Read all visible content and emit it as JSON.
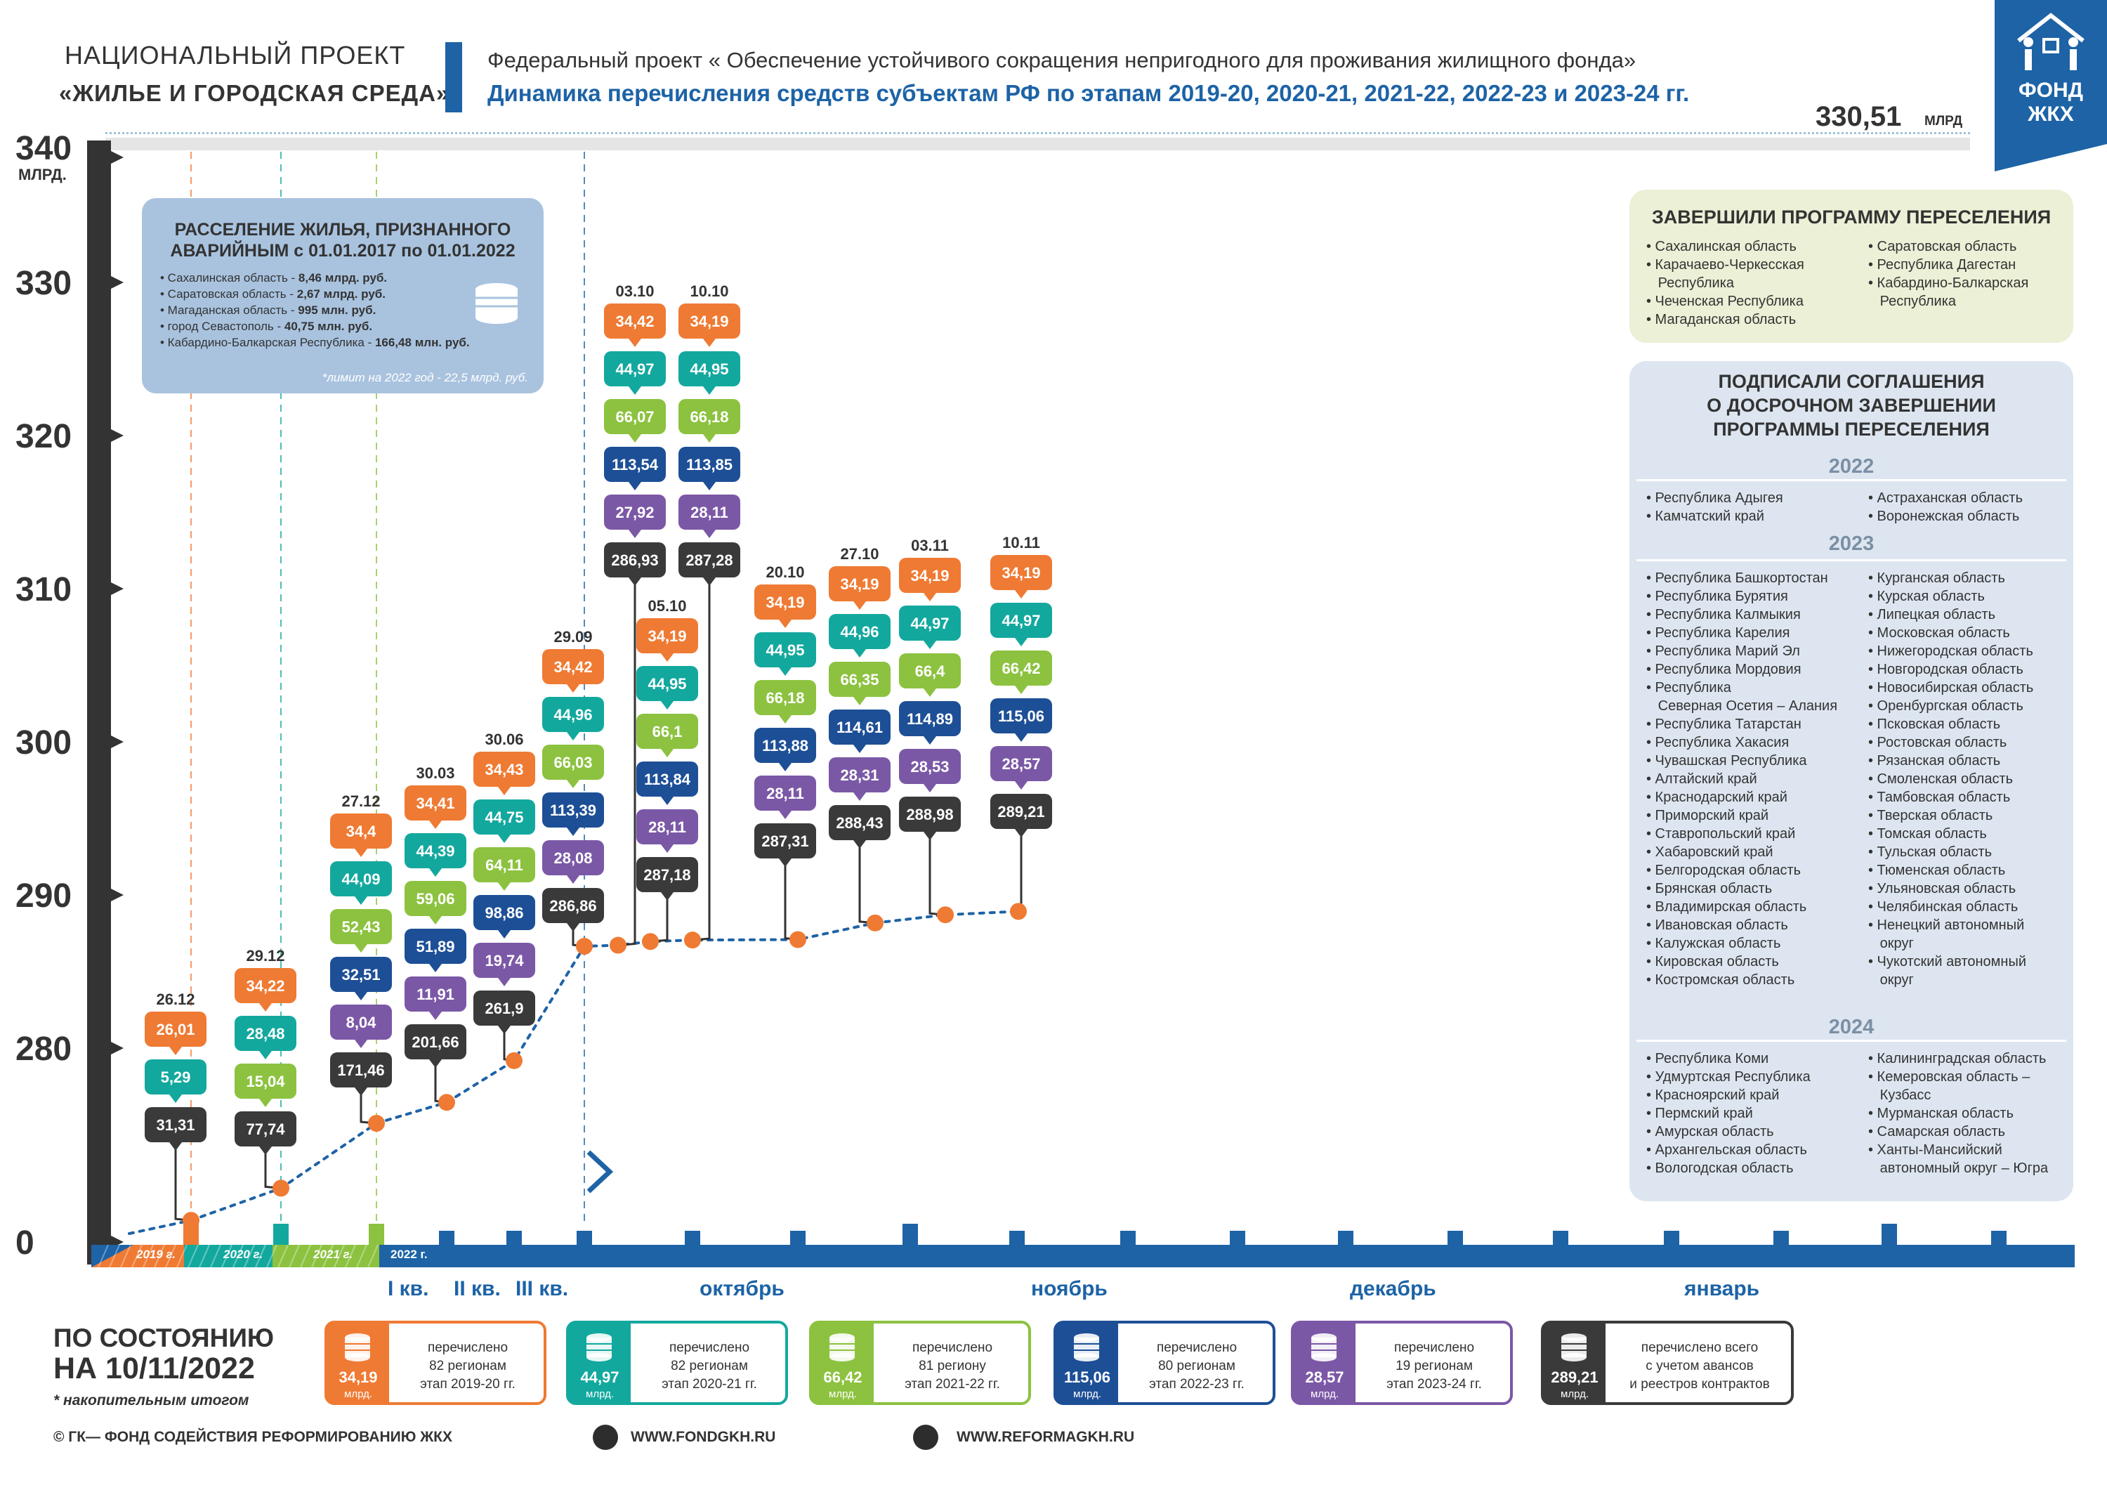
{
  "header": {
    "national_line1": "НАЦИОНАЛЬНЫЙ ПРОЕКТ",
    "national_line2": "«ЖИЛЬЕ И ГОРОДСКАЯ СРЕДА»",
    "federal": "Федеральный проект « Обеспечение устойчивого сокращения непригодного для проживания жилищного фонда»",
    "dynamics": "Динамика перечисления средств субъектам РФ по этапам 2019-20, 2020-21, 2021-22, 2022-23 и 2023-24 гг.",
    "logo_line1": "ФОНД",
    "logo_line2": "ЖКХ",
    "total_value": "330,51",
    "total_unit": "МЛРД"
  },
  "colors": {
    "orange": "#ef7a33",
    "teal": "#13a89e",
    "lime": "#8cc23f",
    "blue": "#1d4f96",
    "purple": "#7b58a6",
    "dark": "#3a3a3a",
    "brand": "#1d63a6"
  },
  "info_box": {
    "title_line1": "РАССЕЛЕНИЕ ЖИЛЬЯ, ПРИЗНАННОГО",
    "title_line2": "АВАРИЙНЫМ с 01.01.2017 по 01.01.2022",
    "items": [
      {
        "name": "• Сахалинская область - ",
        "value": "8,46 млрд. руб."
      },
      {
        "name": "• Саратовская область - ",
        "value": "2,67 млрд. руб."
      },
      {
        "name": "• Магаданская область - ",
        "value": "995 млн. руб."
      },
      {
        "name": "• город Севастополь - ",
        "value": "40,75 млн. руб."
      },
      {
        "name": "• Кабардино-Балкарская Республика - ",
        "value": "166,48 млн. руб."
      }
    ],
    "note": "*лимит на 2022 год - 22,5 млрд. руб."
  },
  "completed": {
    "title": "ЗАВЕРШИЛИ ПРОГРАММУ ПЕРЕСЕЛЕНИЯ",
    "left": [
      "• Сахалинская область",
      "• Карачаево-Черкесская",
      "   Республика",
      "• Чеченская Республика",
      "• Магаданская область"
    ],
    "right": [
      "• Саратовская область",
      "• Республика Дагестан",
      "• Кабардино-Балкарская",
      "   Республика"
    ]
  },
  "agreements": {
    "title_line1": "ПОДПИСАЛИ СОГЛАШЕНИЯ",
    "title_line2": "О ДОСРОЧНОМ ЗАВЕРШЕНИИ",
    "title_line3": "ПРОГРАММЫ ПЕРЕСЕЛЕНИЯ",
    "y2022": "2022",
    "y2022_left": [
      "• Республика Адыгея",
      "• Камчатский край"
    ],
    "y2022_right": [
      "• Астраханская область",
      "• Воронежская область"
    ],
    "y2023": "2023",
    "y2023_left": [
      "• Республика Башкортостан",
      "• Республика Бурятия",
      "• Республика Калмыкия",
      "• Республика Карелия",
      "• Республика Марий Эл",
      "• Республика Мордовия",
      "• Республика",
      "   Северная Осетия – Алания",
      "• Республика Татарстан",
      "• Республика Хакасия",
      "• Чувашская Республика",
      "• Алтайский край",
      "• Краснодарский край",
      "• Приморский край",
      "• Ставропольский край",
      "• Хабаровский край",
      "• Белгородская область",
      "• Брянская область",
      "• Владимирская область",
      "• Ивановская область",
      "• Калужская область",
      "• Кировская область",
      "• Костромская область"
    ],
    "y2023_right": [
      "• Курганская область",
      "• Курская область",
      "• Липецкая область",
      "• Московская область",
      "• Нижегородская область",
      "• Новгородская область",
      "• Новосибирская область",
      "• Оренбургская область",
      "• Псковская область",
      "• Ростовская область",
      "• Рязанская область",
      "• Смоленская область",
      "• Тамбовская область",
      "• Тверская область",
      "• Томская область",
      "• Тульская область",
      "• Тюменская область",
      "• Ульяновская область",
      "• Челябинская область",
      "• Ненецкий автономный",
      "   округ",
      "• Чукотский автономный",
      "   округ"
    ],
    "y2024": "2024",
    "y2024_left": [
      "• Республика Коми",
      "• Удмуртская Республика",
      "• Красноярский край",
      "• Пермский край",
      "• Амурская область",
      "• Архангельская область",
      "• Вологодская область"
    ],
    "y2024_right": [
      "• Калининградская область",
      "• Кемеровская область –",
      "   Кузбасс",
      "• Мурманская область",
      "• Самарская область",
      "• Ханты-Мансийский",
      "   автономный округ – Югра"
    ]
  },
  "status": {
    "line1": "ПО СОСТОЯНИЮ",
    "line2": "НА  10/11/2022",
    "note": "* накопительным итогом",
    "copyright": "©  ГК—  ФОНД СОДЕЙСТВИЯ РЕФОРМИРОВАНИЮ ЖКХ",
    "web1": "WWW.FONDGKH.RU",
    "web2": "WWW.REFORMAGKH.RU"
  },
  "legend": [
    {
      "value": "34,19",
      "unit": "млрд.",
      "l1": "перечислено",
      "l2": "82 регионам",
      "l3": "этап 2019-20 гг."
    },
    {
      "value": "44,97",
      "unit": "млрд.",
      "l1": "перечислено",
      "l2": "82 регионам",
      "l3": "этап 2020-21 гг."
    },
    {
      "value": "66,42",
      "unit": "млрд.",
      "l1": "перечислено",
      "l2": "81 региону",
      "l3": "этап 2021-22 гг."
    },
    {
      "value": "115,06",
      "unit": "млрд.",
      "l1": "перечислено",
      "l2": "80 регионам",
      "l3": "этап 2022-23 гг."
    },
    {
      "value": "28,57",
      "unit": "млрд.",
      "l1": "перечислено",
      "l2": "19 регионам",
      "l3": "этап 2023-24 гг."
    },
    {
      "value": "289,21",
      "unit": "млрд.",
      "l1": "перечислено всего",
      "l2": "с учетом авансов",
      "l3": "и реестров контрактов"
    }
  ],
  "chart_data": {
    "type": "bar",
    "title": "Динамика перечисления средств субъектам РФ по этапам 2019-20, 2020-21, 2021-22, 2022-23 и 2023-24 гг.",
    "ylabel": "МЛРД.",
    "y_ticks": [
      "340",
      "330",
      "320",
      "310",
      "300",
      "290",
      "280",
      "0"
    ],
    "ylim": [
      0,
      340
    ],
    "x_period_labels": [
      "2019 г.",
      "2020 г.",
      "2021 г.",
      "2022 г."
    ],
    "quarter_labels": [
      "I кв.",
      "II кв.",
      "III кв."
    ],
    "month_labels": [
      "октябрь",
      "ноябрь",
      "декабрь",
      "январь"
    ],
    "series_names": [
      "этап 2019-20",
      "этап 2020-21",
      "этап 2021-22",
      "этап 2022-23",
      "этап 2023-24",
      "всего"
    ],
    "points": [
      {
        "date": "26.12",
        "values": [
          "26,01",
          "5,29",
          "31,31"
        ],
        "kinds": [
          0,
          1,
          5
        ],
        "total": 31.31
      },
      {
        "date": "29.12",
        "values": [
          "34,22",
          "28,48",
          "15,04",
          "77,74"
        ],
        "kinds": [
          0,
          1,
          2,
          5
        ],
        "total": 77.74
      },
      {
        "date": "27.12",
        "values": [
          "34,4",
          "44,09",
          "52,43",
          "32,51",
          "8,04",
          "171,46"
        ],
        "kinds": [
          0,
          1,
          2,
          3,
          4,
          5
        ],
        "total": 171.46
      },
      {
        "date": "30.03",
        "values": [
          "34,41",
          "44,39",
          "59,06",
          "51,89",
          "11,91",
          "201,66"
        ],
        "kinds": [
          0,
          1,
          2,
          3,
          4,
          5
        ],
        "total": 201.66
      },
      {
        "date": "30.06",
        "values": [
          "34,43",
          "44,75",
          "64,11",
          "98,86",
          "19,74",
          "261,9"
        ],
        "kinds": [
          0,
          1,
          2,
          3,
          4,
          5
        ],
        "total": 261.9
      },
      {
        "date": "29.09",
        "values": [
          "34,42",
          "44,96",
          "66,03",
          "113,39",
          "28,08",
          "286,86"
        ],
        "kinds": [
          0,
          1,
          2,
          3,
          4,
          5
        ],
        "total": 286.86
      },
      {
        "date": "03.10",
        "values": [
          "34,42",
          "44,97",
          "66,07",
          "113,54",
          "27,92",
          "286,93"
        ],
        "kinds": [
          0,
          1,
          2,
          3,
          4,
          5
        ],
        "total": 286.93
      },
      {
        "date": "05.10",
        "values": [
          "34,19",
          "44,95",
          "66,1",
          "113,84",
          "28,11",
          "287,18"
        ],
        "kinds": [
          0,
          1,
          2,
          3,
          4,
          5
        ],
        "total": 287.18
      },
      {
        "date": "10.10",
        "values": [
          "34,19",
          "44,95",
          "66,18",
          "113,85",
          "28,11",
          "287,28"
        ],
        "kinds": [
          0,
          1,
          2,
          3,
          4,
          5
        ],
        "total": 287.28
      },
      {
        "date": "20.10",
        "values": [
          "34,19",
          "44,95",
          "66,18",
          "113,88",
          "28,11",
          "287,31"
        ],
        "kinds": [
          0,
          1,
          2,
          3,
          4,
          5
        ],
        "total": 287.31
      },
      {
        "date": "27.10",
        "values": [
          "34,19",
          "44,96",
          "66,35",
          "114,61",
          "28,31",
          "288,43"
        ],
        "kinds": [
          0,
          1,
          2,
          3,
          4,
          5
        ],
        "total": 288.43
      },
      {
        "date": "03.11",
        "values": [
          "34,19",
          "44,97",
          "66,4",
          "114,89",
          "28,53",
          "288,98"
        ],
        "kinds": [
          0,
          1,
          2,
          3,
          4,
          5
        ],
        "total": 288.98
      },
      {
        "date": "10.11",
        "values": [
          "34,19",
          "44,97",
          "66,42",
          "115,06",
          "28,57",
          "289,21"
        ],
        "kinds": [
          0,
          1,
          2,
          3,
          4,
          5
        ],
        "total": 289.21
      }
    ]
  }
}
